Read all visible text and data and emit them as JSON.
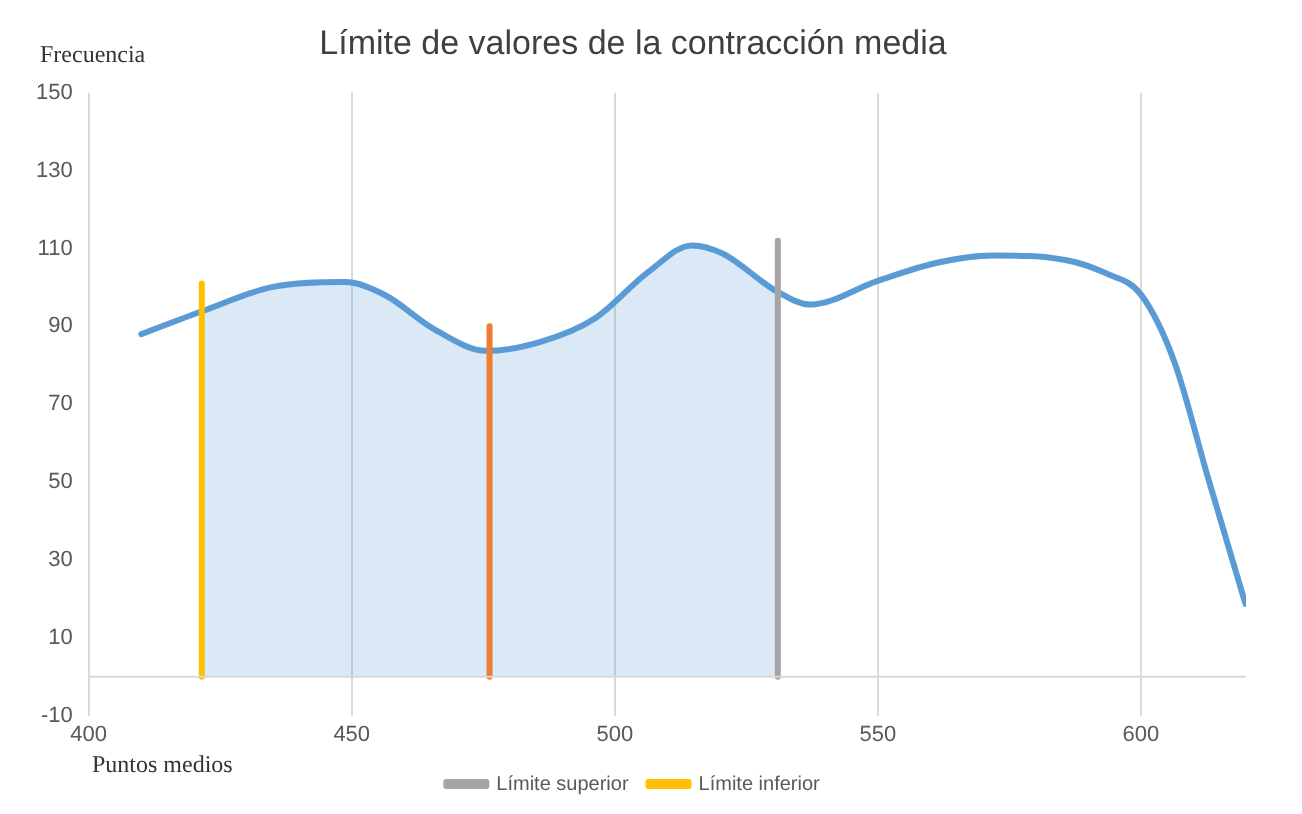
{
  "chart_data": {
    "type": "line",
    "title": "Límite de valores de la contracción media",
    "xlabel": "Puntos medios",
    "ylabel": "Frecuencia",
    "xlim": [
      400,
      620
    ],
    "xticks": [
      400,
      450,
      500,
      550,
      600
    ],
    "ylim": [
      -10,
      150
    ],
    "yticks": [
      -10,
      10,
      30,
      50,
      70,
      90,
      110,
      130,
      150
    ],
    "grid": "x",
    "legend": "bottom",
    "marker": "none",
    "line_style": "solid",
    "series": [
      {
        "color": "#5b9bd5",
        "x": [
          410,
          421.8,
          434.6,
          448.7,
          456.4,
          465.4,
          475.6,
          485.9,
          496.2,
          506.4,
          514.7,
          520.5,
          530.8,
          537.2,
          550,
          561.5,
          571.8,
          585.9,
          593.6,
          600,
          606.4,
          612.8,
          619.9
        ],
        "values": [
          88,
          94,
          100,
          101.4,
          98,
          89.5,
          83.7,
          86,
          92,
          104,
          110.8,
          108.7,
          99,
          95.6,
          101.7,
          106.4,
          108.2,
          107,
          103.5,
          98.2,
          80.8,
          51,
          18.7
        ]
      },
      {
        "name": "Límite superior",
        "color": "#a5a5a5",
        "x": [
          531,
          531
        ],
        "values": [
          0,
          112
        ]
      },
      {
        "name": "Límite inferior",
        "color": "#ffc000",
        "x": [
          421.5,
          421.5
        ],
        "values": [
          0,
          101
        ]
      },
      {
        "color": "#ed7d31",
        "x": [
          476.2,
          476.2
        ],
        "values": [
          0,
          90
        ]
      }
    ],
    "bands": [
      {
        "axis": "x",
        "from": 421.5,
        "to": 531,
        "color": "#5b9bd5"
      }
    ]
  }
}
